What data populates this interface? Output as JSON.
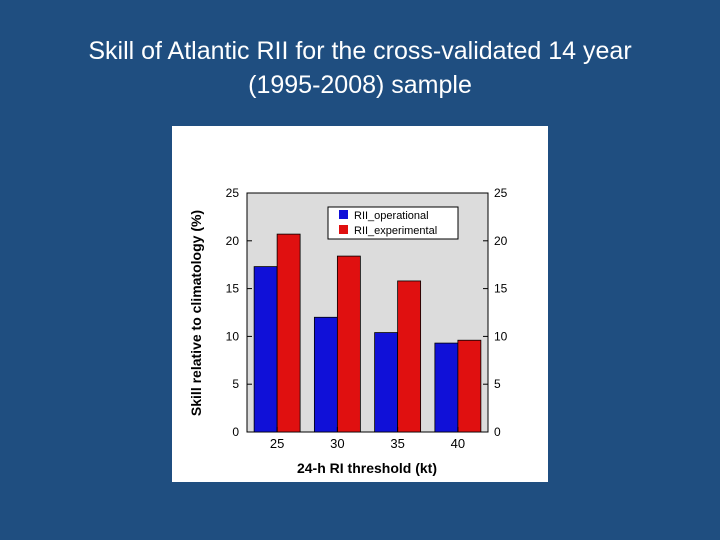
{
  "slide": {
    "title_line1": "Skill of Atlantic RII for the cross-validated 14 year",
    "title_line2": "(1995-2008) sample"
  },
  "chart_data": {
    "type": "bar",
    "title": "",
    "xlabel": "24-h RI threshold (kt)",
    "ylabel": "Skill relative to climatology (%)",
    "categories": [
      "25",
      "30",
      "35",
      "40"
    ],
    "ylim": [
      0,
      25
    ],
    "yticks": [
      "0",
      "5",
      "10",
      "15",
      "20",
      "25"
    ],
    "series": [
      {
        "name": "RII_operational",
        "color": "#1010d8",
        "values": [
          17.3,
          12.0,
          10.4,
          9.3
        ]
      },
      {
        "name": "RII_experimental",
        "color": "#e01010",
        "values": [
          20.7,
          18.4,
          15.8,
          9.6
        ]
      }
    ],
    "legend_position": "top-right",
    "grid": false,
    "colors": {
      "background": "#1f4e80",
      "panel": "#ffffff",
      "plot_area": "#dcdcdc"
    }
  }
}
